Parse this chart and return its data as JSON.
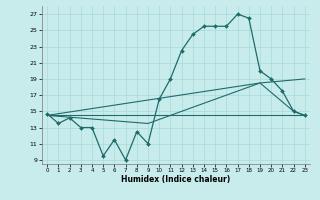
{
  "xlabel": "Humidex (Indice chaleur)",
  "bg_color": "#c8ecec",
  "grid_color": "#a8d8d8",
  "line_color": "#1e6b6b",
  "xlim": [
    -0.5,
    23.5
  ],
  "ylim": [
    8.5,
    28.0
  ],
  "yticks": [
    9,
    11,
    13,
    15,
    17,
    19,
    21,
    23,
    25,
    27
  ],
  "xticks": [
    0,
    1,
    2,
    3,
    4,
    5,
    6,
    7,
    8,
    9,
    10,
    11,
    12,
    13,
    14,
    15,
    16,
    17,
    18,
    19,
    20,
    21,
    22,
    23
  ],
  "main_x": [
    0,
    1,
    2,
    3,
    4,
    5,
    6,
    7,
    8,
    9,
    10,
    11,
    12,
    13,
    14,
    15,
    16,
    17,
    18,
    19,
    20,
    21,
    22,
    23
  ],
  "main_y": [
    14.7,
    13.5,
    14.2,
    13.0,
    13.0,
    9.5,
    11.5,
    9.0,
    12.5,
    11.0,
    16.5,
    19.0,
    22.5,
    24.5,
    25.5,
    25.5,
    25.5,
    27.0,
    26.5,
    20.0,
    19.0,
    17.5,
    15.0,
    14.5
  ],
  "line1_x": [
    0,
    23
  ],
  "line1_y": [
    14.5,
    14.5
  ],
  "line2_x": [
    0,
    19,
    22,
    23
  ],
  "line2_y": [
    14.5,
    18.5,
    15.0,
    14.5
  ],
  "line3_x": [
    0,
    9,
    19,
    23
  ],
  "line3_y": [
    14.5,
    13.5,
    18.5,
    19.0
  ]
}
